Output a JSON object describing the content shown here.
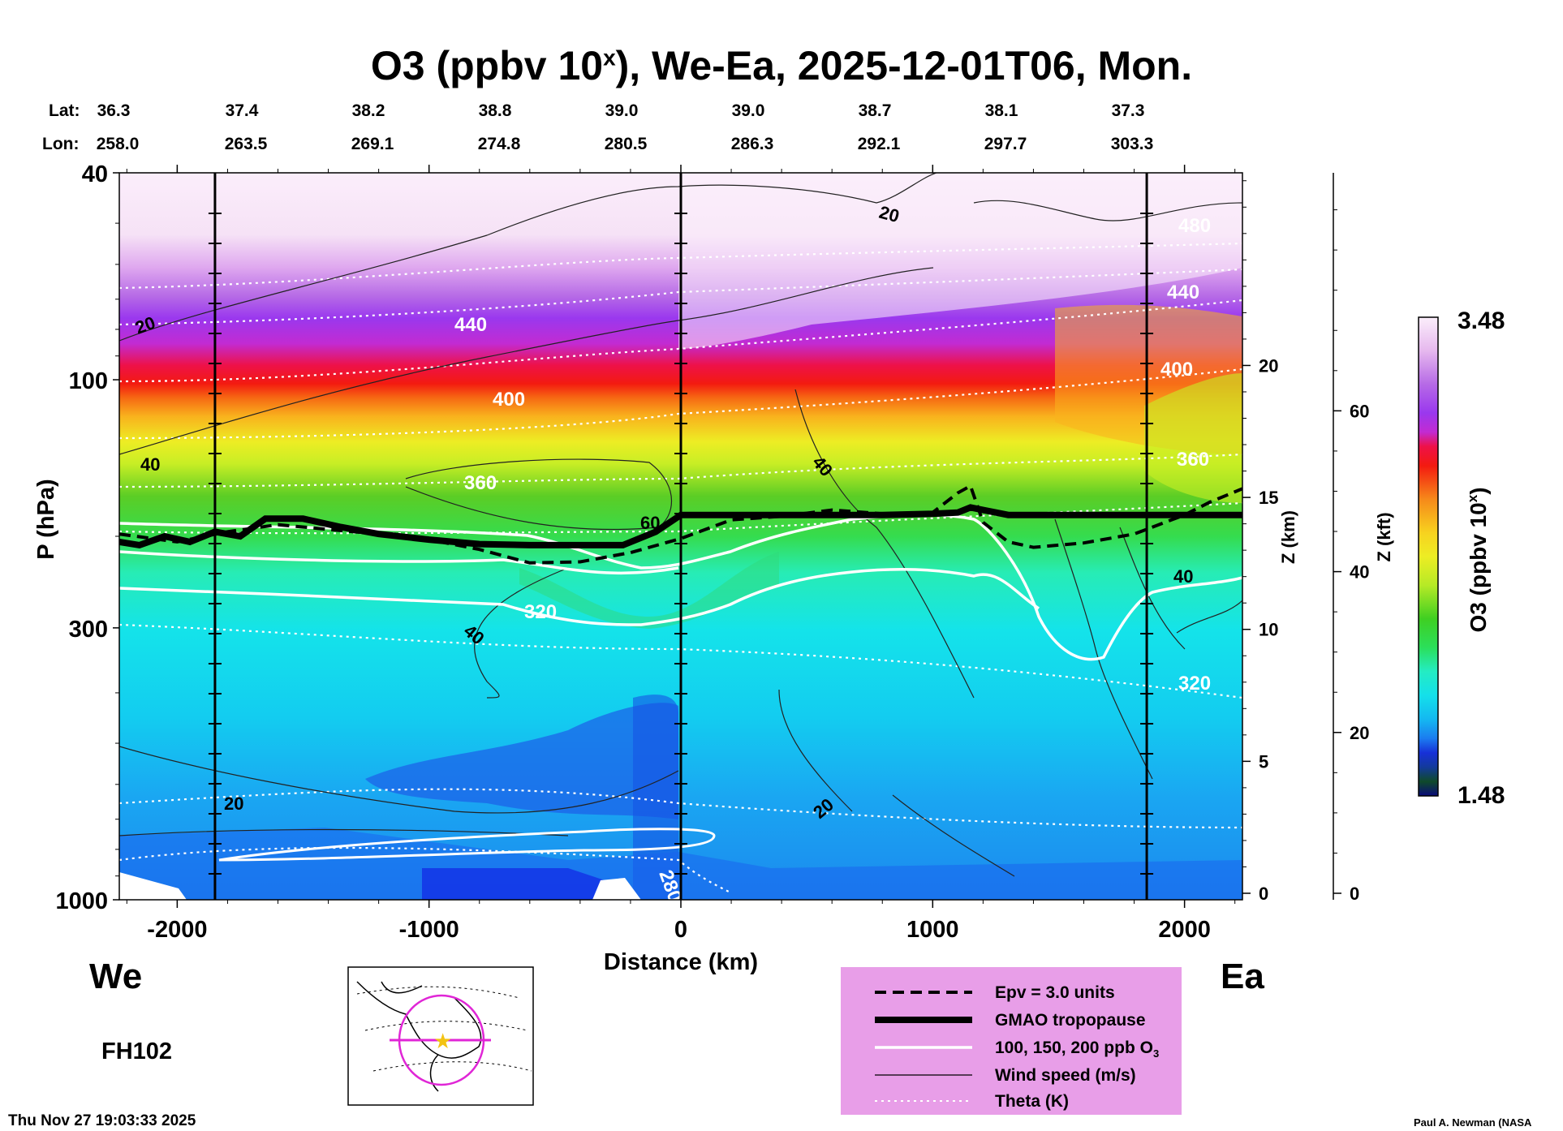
{
  "title": {
    "text": "O3 (ppbv 10",
    "sup": "x",
    "rest": "), We-Ea, 2025-12-01T06, Mon."
  },
  "header": {
    "lat_label": "Lat:",
    "lon_label": "Lon:",
    "lat": [
      "36.3",
      "37.4",
      "38.2",
      "38.8",
      "39.0",
      "39.0",
      "38.7",
      "38.1",
      "37.3"
    ],
    "lon": [
      "258.0",
      "263.5",
      "269.1",
      "274.8",
      "280.5",
      "286.3",
      "292.1",
      "297.7",
      "303.3"
    ]
  },
  "chart_data": {
    "type": "heatmap",
    "xlabel": "Distance (km)",
    "ylabel": "P (hPa)",
    "xlim": [
      -2230,
      2230
    ],
    "ylim": [
      1000,
      40
    ],
    "y_scale": "log",
    "x_ticks": [
      "-2000",
      "-1000",
      "0",
      "1000",
      "2000"
    ],
    "x_tick_values": [
      -2000,
      -1000,
      0,
      1000,
      2000
    ],
    "y_ticks": [
      "40",
      "100",
      "300",
      "1000"
    ],
    "y_tick_values": [
      40,
      100,
      300,
      1000
    ],
    "z_km_label": "Z (km)",
    "z_km_ticks": [
      "20",
      "15",
      "10",
      "5",
      "0"
    ],
    "z_km_values": [
      20,
      15,
      10,
      5,
      0
    ],
    "z_kft_label": "Z (kft)",
    "z_kft_ticks": [
      "60",
      "40",
      "20",
      "0"
    ],
    "z_kft_values": [
      60,
      40,
      20,
      0
    ],
    "vertical_lines_km": [
      -1850,
      0,
      1850
    ],
    "tropopause": {
      "x": [
        -2230,
        -2150,
        -2050,
        -1950,
        -1850,
        -1750,
        -1650,
        -1500,
        -1350,
        -1200,
        -1000,
        -800,
        -600,
        -400,
        -230,
        -100,
        0,
        200,
        400,
        600,
        800,
        1000,
        1100,
        1150,
        1200,
        1300,
        1500,
        1800,
        2230
      ],
      "p": [
        205,
        208,
        200,
        205,
        196,
        200,
        185,
        185,
        192,
        198,
        203,
        207,
        208,
        208,
        208,
        196,
        182,
        182,
        182,
        182,
        182,
        181,
        180,
        176,
        178,
        182,
        182,
        182,
        182
      ]
    },
    "epv": {
      "x": [
        -2230,
        -2000,
        -1800,
        -1600,
        -1400,
        -1200,
        -1000,
        -800,
        -600,
        -400,
        -200,
        0,
        200,
        400,
        600,
        800,
        1000,
        1100,
        1150,
        1200,
        1300,
        1400,
        1600,
        1800,
        2000,
        2100,
        2230
      ],
      "p": [
        198,
        205,
        196,
        190,
        194,
        198,
        203,
        212,
        225,
        224,
        215,
        202,
        186,
        183,
        178,
        181,
        180,
        165,
        160,
        188,
        205,
        210,
        206,
        198,
        182,
        172,
        162
      ]
    },
    "o3_contours_ppb": [
      "100, 150, 200 ppb O3"
    ],
    "theta_labels": [
      "440",
      "400",
      "360",
      "320",
      "480",
      "440",
      "400",
      "360",
      "320",
      "280"
    ],
    "wind_labels": [
      "20",
      "40",
      "60",
      "40",
      "20",
      "40",
      "40",
      "20",
      "20"
    ],
    "colorbar": {
      "label": "O3 (ppbv 10",
      "label_sup": "x",
      "label_end": ")",
      "max": "3.48",
      "min": "1.48"
    },
    "legend": [
      {
        "style": "dashed",
        "label": "Epv = 3.0 units"
      },
      {
        "style": "thick",
        "label": "GMAO tropopause"
      },
      {
        "style": "white",
        "label": "100, 150, 200 ppb O",
        "sub": "3"
      },
      {
        "style": "thin",
        "label": "Wind speed (m/s)"
      },
      {
        "style": "dotted",
        "label": "Theta (K)"
      }
    ]
  },
  "labels": {
    "west": "We",
    "east": "Ea",
    "forecast_hour": "FH102"
  },
  "footer": {
    "timestamp": "Thu Nov 27 19:03:33 2025",
    "credit": "Paul A. Newman (NASA"
  }
}
